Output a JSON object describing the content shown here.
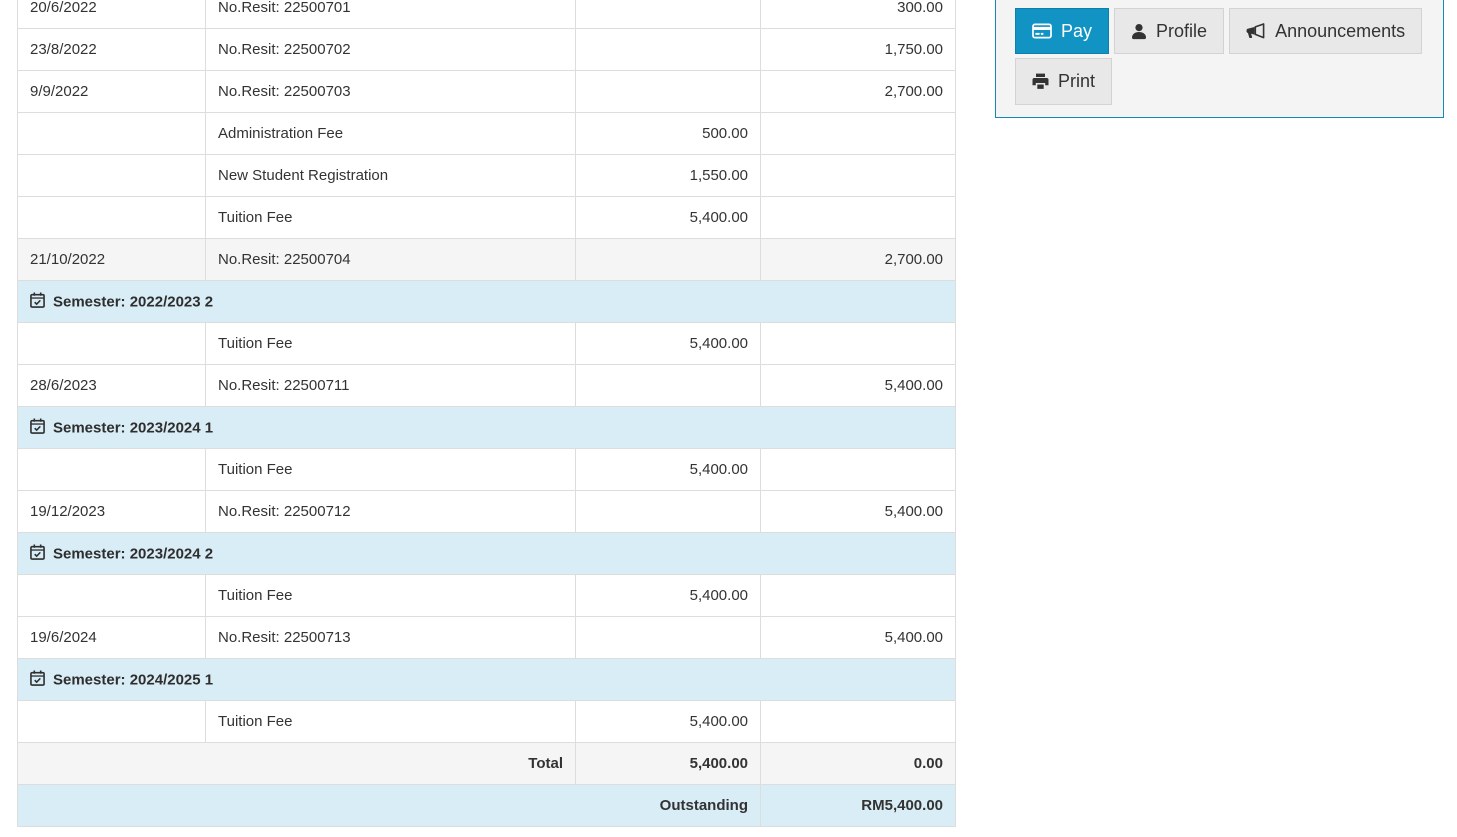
{
  "statement": {
    "rows": [
      {
        "type": "entry",
        "date": "20/6/2022",
        "description": "No.Resit: 22500701",
        "debit": "",
        "credit": "300.00"
      },
      {
        "type": "entry",
        "date": "23/8/2022",
        "description": "No.Resit: 22500702",
        "debit": "",
        "credit": "1,750.00"
      },
      {
        "type": "entry",
        "date": "9/9/2022",
        "description": "No.Resit: 22500703",
        "debit": "",
        "credit": "2,700.00"
      },
      {
        "type": "entry",
        "date": "",
        "description": "Administration Fee",
        "debit": "500.00",
        "credit": ""
      },
      {
        "type": "entry",
        "date": "",
        "description": "New Student Registration",
        "debit": "1,550.00",
        "credit": ""
      },
      {
        "type": "entry",
        "date": "",
        "description": "Tuition Fee",
        "debit": "5,400.00",
        "credit": ""
      },
      {
        "type": "entry",
        "striped": true,
        "date": "21/10/2022",
        "description": "No.Resit: 22500704",
        "debit": "",
        "credit": "2,700.00"
      },
      {
        "type": "semester",
        "label": "Semester: 2022/2023 2"
      },
      {
        "type": "entry",
        "date": "",
        "description": "Tuition Fee",
        "debit": "5,400.00",
        "credit": ""
      },
      {
        "type": "entry",
        "date": "28/6/2023",
        "description": "No.Resit: 22500711",
        "debit": "",
        "credit": "5,400.00"
      },
      {
        "type": "semester",
        "label": "Semester: 2023/2024 1"
      },
      {
        "type": "entry",
        "date": "",
        "description": "Tuition Fee",
        "debit": "5,400.00",
        "credit": ""
      },
      {
        "type": "entry",
        "date": "19/12/2023",
        "description": "No.Resit: 22500712",
        "debit": "",
        "credit": "5,400.00"
      },
      {
        "type": "semester",
        "label": "Semester: 2023/2024 2"
      },
      {
        "type": "entry",
        "date": "",
        "description": "Tuition Fee",
        "debit": "5,400.00",
        "credit": ""
      },
      {
        "type": "entry",
        "date": "19/6/2024",
        "description": "No.Resit: 22500713",
        "debit": "",
        "credit": "5,400.00"
      },
      {
        "type": "semester",
        "label": "Semester: 2024/2025 1"
      },
      {
        "type": "entry",
        "date": "",
        "description": "Tuition Fee",
        "debit": "5,400.00",
        "credit": ""
      },
      {
        "type": "total",
        "label": "Total",
        "debit": "5,400.00",
        "credit": "0.00"
      },
      {
        "type": "outstanding",
        "label": "Outstanding",
        "amount": "RM5,400.00"
      }
    ]
  },
  "actions_panel": {
    "buttons": [
      {
        "id": "pay",
        "label": "Pay",
        "icon": "credit-card-icon",
        "active": true
      },
      {
        "id": "profile",
        "label": "Profile",
        "icon": "user-icon",
        "active": false
      },
      {
        "id": "announcements",
        "label": "Announcements",
        "icon": "bullhorn-icon",
        "active": false
      },
      {
        "id": "print",
        "label": "Print",
        "icon": "printer-icon",
        "active": false
      }
    ]
  },
  "colors": {
    "accent_blue": "#1193c4",
    "panel_border": "#1688b4",
    "info_row_bg": "#d9edf7",
    "stripe_bg": "#f5f5f5",
    "table_border": "#dddddd",
    "text": "#333333"
  }
}
